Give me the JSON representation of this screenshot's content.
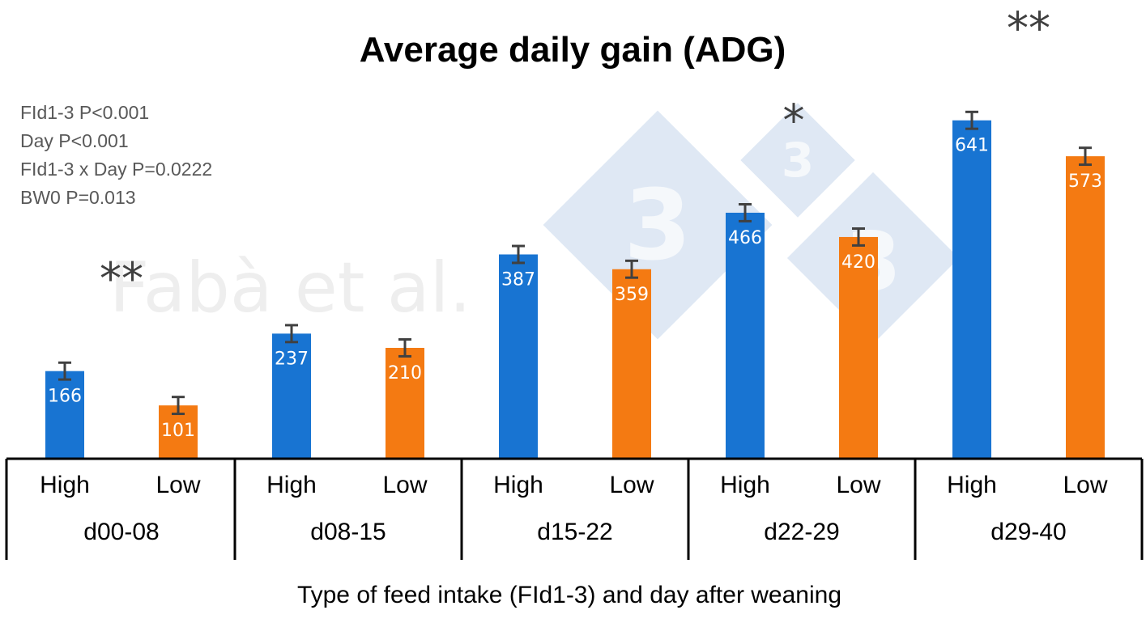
{
  "chart_data": {
    "type": "bar",
    "title": "Average daily gain (ADG)",
    "xlabel": "Type of feed intake (FId1-3) and day after weaning",
    "ylabel": "",
    "ylim": [
      0,
      720
    ],
    "categories": [
      "High",
      "Low",
      "High",
      "Low",
      "High",
      "Low",
      "High",
      "Low",
      "High",
      "Low"
    ],
    "groups": [
      {
        "label": "d00-08",
        "significance": "**"
      },
      {
        "label": "d08-15",
        "significance": ""
      },
      {
        "label": "d15-22",
        "significance": ""
      },
      {
        "label": "d22-29",
        "significance": "*"
      },
      {
        "label": "d29-40",
        "significance": "**"
      }
    ],
    "values": [
      166,
      101,
      237,
      210,
      387,
      359,
      466,
      420,
      641,
      573
    ],
    "error_bars": [
      16,
      16,
      16,
      16,
      16,
      16,
      16,
      16,
      16,
      16
    ],
    "colors": {
      "High": "#1874d2",
      "Low": "#f47a12"
    },
    "stats_annotations": [
      "FId1-3 P<0.001",
      "Day P<0.001",
      "FId1-3 x Day P=0.0222",
      "BW0 P=0.013"
    ],
    "watermark": "Fabà et al.",
    "grid": false,
    "legend": "none"
  }
}
